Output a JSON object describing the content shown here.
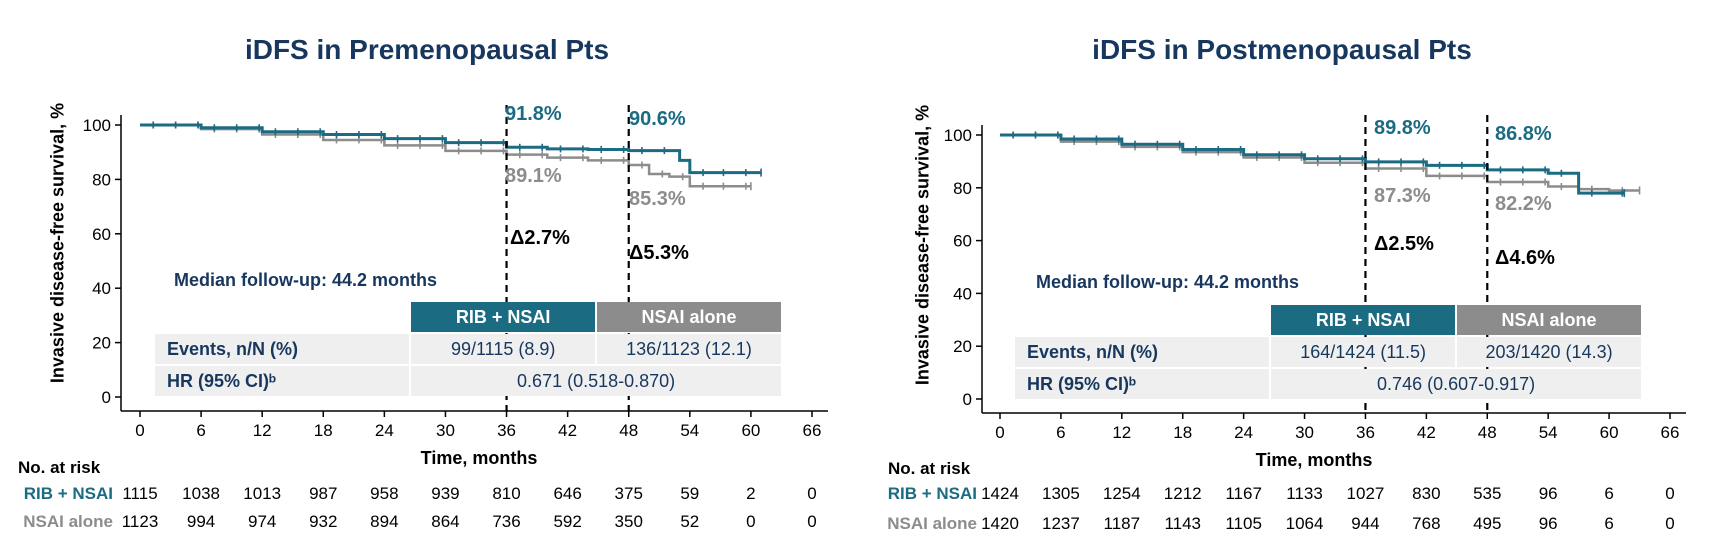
{
  "colors": {
    "rib": "#1b6b82",
    "nsai": "#8c8c8c",
    "title": "#17375e"
  },
  "chart_data": [
    {
      "type": "line",
      "title": "iDFS in Premenopausal Pts",
      "xlabel": "Time, months",
      "ylabel": "Invasive disease-free survival, %",
      "xlim": [
        0,
        66
      ],
      "ylim": [
        0,
        100
      ],
      "xticks": [
        "0",
        "6",
        "12",
        "18",
        "24",
        "30",
        "36",
        "42",
        "48",
        "54",
        "60",
        "66"
      ],
      "yticks": [
        "0",
        "20",
        "40",
        "60",
        "80",
        "100"
      ],
      "series": [
        {
          "name": "RIB + NSAI",
          "x": [
            0,
            6,
            12,
            18,
            24,
            30,
            36,
            40,
            44,
            48,
            52,
            53,
            54,
            56,
            61
          ],
          "y": [
            100,
            99,
            97.5,
            96.5,
            95,
            93.5,
            91.8,
            91.2,
            91.0,
            90.6,
            90.6,
            87,
            82.5,
            82.5,
            82.5
          ]
        },
        {
          "name": "NSAI alone",
          "x": [
            0,
            6,
            12,
            18,
            24,
            30,
            36,
            40,
            44,
            48,
            50,
            52,
            54,
            56,
            60
          ],
          "y": [
            100,
            98.5,
            96.5,
            94.5,
            92.5,
            90.5,
            89.1,
            88,
            87,
            85.3,
            82,
            81,
            77.5,
            77.5,
            77.5
          ]
        }
      ],
      "annotations": [
        {
          "x": 36,
          "label_rib": "91.8%",
          "label_nsai": "89.1%",
          "delta": "Δ2.7%"
        },
        {
          "x": 48,
          "label_rib": "90.6%",
          "label_nsai": "85.3%",
          "delta": "Δ5.3%"
        }
      ],
      "median_followup": "Median follow-up: 44.2 months",
      "events_table": {
        "headers": [
          "RIB + NSAI",
          "NSAI alone"
        ],
        "events_label": "Events, n/N (%)",
        "events": [
          "99/1115 (8.9)",
          "136/1123 (12.1)"
        ],
        "hr_label": "HR (95% CI)ᵇ",
        "hr": "0.671 (0.518-0.870)"
      },
      "risk_table": {
        "title": "No. at risk",
        "rows": [
          {
            "label": "RIB + NSAI",
            "values": [
              "1115",
              "1038",
              "1013",
              "987",
              "958",
              "939",
              "810",
              "646",
              "375",
              "59",
              "2",
              "0"
            ]
          },
          {
            "label": "NSAI alone",
            "values": [
              "1123",
              "994",
              "974",
              "932",
              "894",
              "864",
              "736",
              "592",
              "350",
              "52",
              "0",
              "0"
            ]
          }
        ]
      }
    },
    {
      "type": "line",
      "title": "iDFS in Postmenopausal Pts",
      "xlabel": "Time, months",
      "ylabel": "Invasive disease-free survival, %",
      "xlim": [
        0,
        66
      ],
      "ylim": [
        0,
        100
      ],
      "xticks": [
        "0",
        "6",
        "12",
        "18",
        "24",
        "30",
        "36",
        "42",
        "48",
        "54",
        "60",
        "66"
      ],
      "yticks": [
        "0",
        "20",
        "40",
        "60",
        "80",
        "100"
      ],
      "series": [
        {
          "name": "RIB + NSAI",
          "x": [
            0,
            6,
            12,
            18,
            24,
            30,
            36,
            42,
            48,
            54,
            56.5,
            57,
            60,
            61.5
          ],
          "y": [
            100,
            98.5,
            96.5,
            94.5,
            92.5,
            91,
            89.8,
            88.5,
            86.8,
            85.5,
            85.5,
            78,
            78,
            78
          ]
        },
        {
          "name": "NSAI alone",
          "x": [
            0,
            6,
            12,
            18,
            24,
            30,
            36,
            42,
            48,
            54,
            57,
            60,
            63
          ],
          "y": [
            100,
            97.5,
            95.5,
            93.5,
            91.5,
            89.5,
            87.3,
            84.5,
            82.2,
            80.5,
            79.5,
            79,
            79
          ]
        }
      ],
      "annotations": [
        {
          "x": 36,
          "label_rib": "89.8%",
          "label_nsai": "87.3%",
          "delta": "Δ2.5%"
        },
        {
          "x": 48,
          "label_rib": "86.8%",
          "label_nsai": "82.2%",
          "delta": "Δ4.6%"
        }
      ],
      "median_followup": "Median follow-up: 44.2 months",
      "events_table": {
        "headers": [
          "RIB + NSAI",
          "NSAI alone"
        ],
        "events_label": "Events, n/N (%)",
        "events": [
          "164/1424 (11.5)",
          "203/1420 (14.3)"
        ],
        "hr_label": "HR (95% CI)ᵇ",
        "hr": "0.746 (0.607-0.917)"
      },
      "risk_table": {
        "title": "No. at risk",
        "rows": [
          {
            "label": "RIB + NSAI",
            "values": [
              "1424",
              "1305",
              "1254",
              "1212",
              "1167",
              "1133",
              "1027",
              "830",
              "535",
              "96",
              "6",
              "0"
            ]
          },
          {
            "label": "NSAI alone",
            "values": [
              "1420",
              "1237",
              "1187",
              "1143",
              "1105",
              "1064",
              "944",
              "768",
              "495",
              "96",
              "6",
              "0"
            ]
          }
        ]
      }
    }
  ]
}
